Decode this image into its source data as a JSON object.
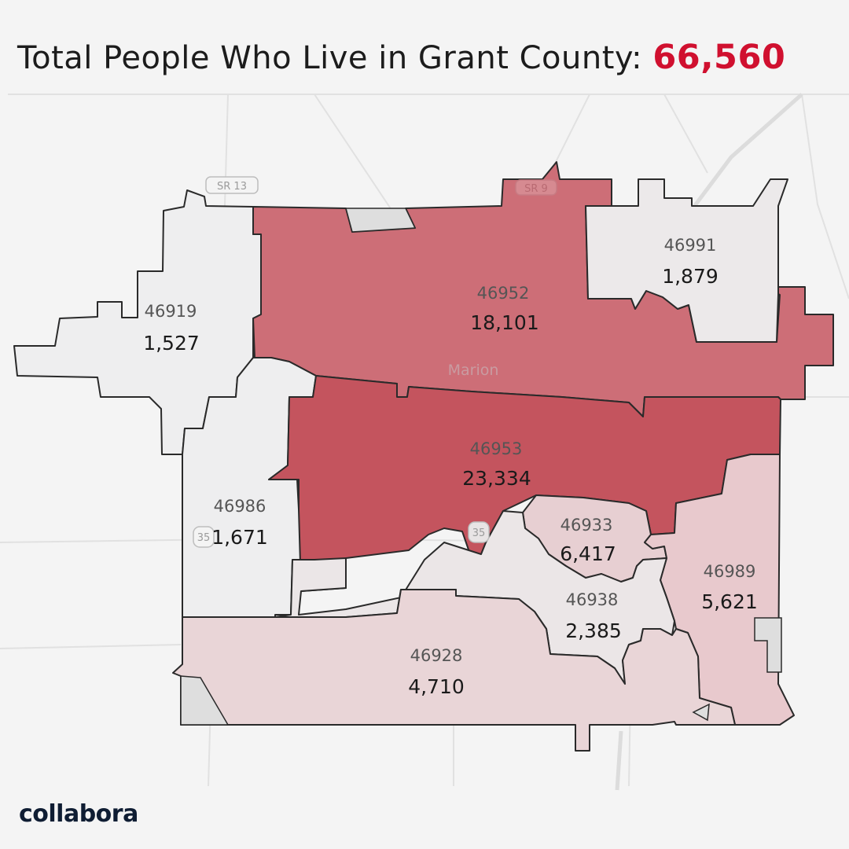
{
  "title": {
    "text": "Total People Who Live in Grant County:",
    "total": "66,560"
  },
  "map": {
    "city_label": "Marion",
    "route_shields": [
      {
        "id": "sr13",
        "label": "SR 13"
      },
      {
        "id": "sr9",
        "label": "SR 9"
      },
      {
        "id": "us35a",
        "label": "35"
      },
      {
        "id": "us35b",
        "label": "35"
      }
    ],
    "zip_areas": [
      {
        "zip": "46952",
        "population": "18,101",
        "color": "#cd6e77"
      },
      {
        "zip": "46953",
        "population": "23,334",
        "color": "#c4545e"
      },
      {
        "zip": "46919",
        "population": "1,527",
        "color": "#eeeeef"
      },
      {
        "zip": "46991",
        "population": "1,879",
        "color": "#ece9ea"
      },
      {
        "zip": "46986",
        "population": "1,671",
        "color": "#eeeeef"
      },
      {
        "zip": "46933",
        "population": "6,417",
        "color": "#e7cfd2"
      },
      {
        "zip": "46989",
        "population": "5,621",
        "color": "#e8c9cd"
      },
      {
        "zip": "46938",
        "population": "2,385",
        "color": "#ebe6e7"
      },
      {
        "zip": "46928",
        "population": "4,710",
        "color": "#e9d5d7"
      }
    ]
  },
  "logo": {
    "text": "collabora"
  }
}
